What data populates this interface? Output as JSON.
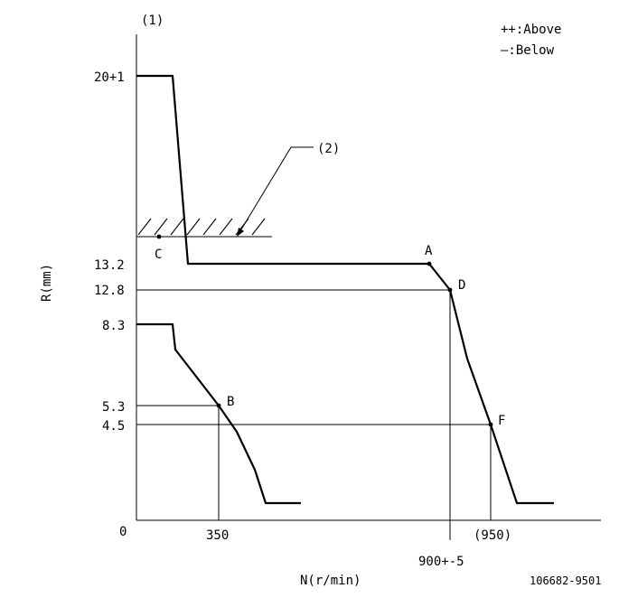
{
  "chart_data": {
    "type": "line",
    "title": "(1)",
    "xlabel": "N(r/min)",
    "ylabel": "R(mm)",
    "legend": {
      "above": "++:Above",
      "below": "—:Below"
    },
    "y_ticks": [
      "20+1",
      "13.2",
      "12.8",
      "8.3",
      "5.3",
      "4.5",
      "0"
    ],
    "x_ticks": [
      "350",
      "900+-5",
      "(950)"
    ],
    "annotation": "(2)",
    "figure_id": "106682-9501",
    "point_labels": [
      "A",
      "B",
      "C",
      "D",
      "F"
    ],
    "series": [
      {
        "values": [
          {
            "x": 0,
            "y": 20
          },
          {
            "x": 65,
            "y": 20
          },
          {
            "x": 88,
            "y": 13.2
          },
          {
            "x": 875,
            "y": 13.2
          },
          {
            "x": 900,
            "y": 12.8
          },
          {
            "x": 950,
            "y": 4.5
          },
          {
            "x": 990,
            "y": 0.6
          },
          {
            "x": 1080,
            "y": 0.6
          }
        ]
      },
      {
        "values": [
          {
            "x": 0,
            "y": 8.3
          },
          {
            "x": 65,
            "y": 8.3
          },
          {
            "x": 70,
            "y": 7.5
          },
          {
            "x": 350,
            "y": 5.3
          },
          {
            "x": 430,
            "y": 2.0
          },
          {
            "x": 470,
            "y": 0.6
          },
          {
            "x": 590,
            "y": 0.6
          }
        ]
      }
    ]
  }
}
